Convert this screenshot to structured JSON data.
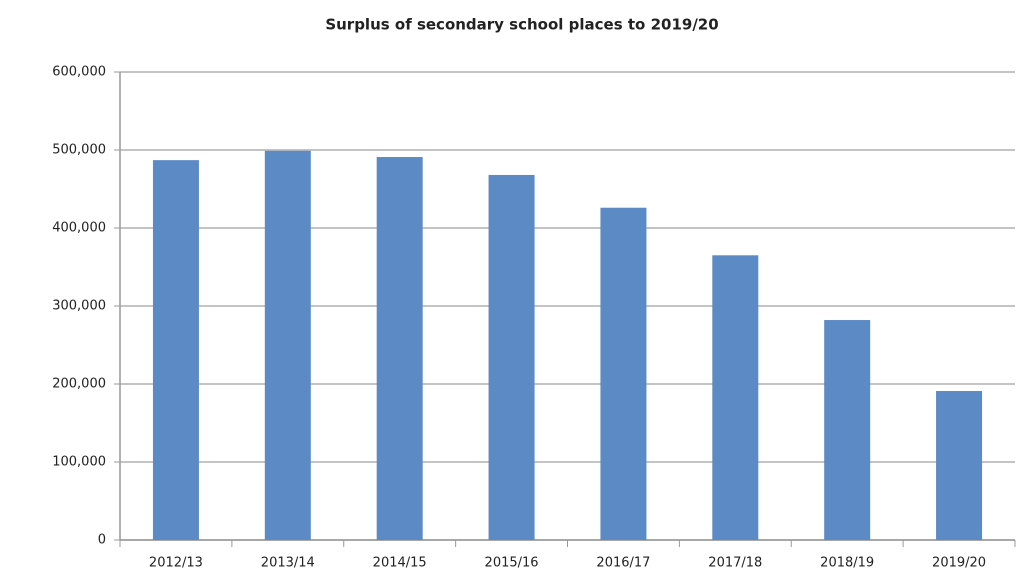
{
  "chart_data": {
    "type": "bar",
    "title": "Surplus of secondary school places to 2019/20",
    "categories": [
      "2012/13",
      "2013/14",
      "2014/15",
      "2015/16",
      "2016/17",
      "2017/18",
      "2018/19",
      "2019/20"
    ],
    "values": [
      487000,
      499000,
      491000,
      468000,
      426000,
      365000,
      282000,
      191000
    ],
    "color": "#5b8ac4",
    "ylim": [
      0,
      600000
    ],
    "yticks": [
      0,
      {
        "value": 100000,
        "label": "100,000"
      },
      {
        "value": 200000,
        "label": "200,000"
      },
      {
        "value": 300000,
        "label": "300,000"
      },
      {
        "value": 400000,
        "label": "400,000"
      },
      {
        "value": 500000,
        "label": "500,000"
      },
      {
        "value": 600000,
        "label": "600,000"
      }
    ],
    "grid": true
  }
}
